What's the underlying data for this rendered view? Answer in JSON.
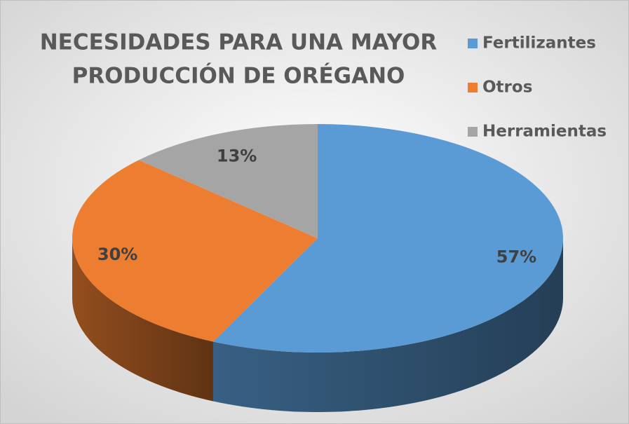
{
  "chart_data": {
    "type": "pie",
    "title": [
      "NECESIDADES PARA UNA MAYOR",
      "PRODUCCIÓN DE ORÉGANO"
    ],
    "categories": [
      "Fertilizantes",
      "Otros",
      "Herramientas"
    ],
    "values": [
      57,
      30,
      13
    ],
    "value_labels": [
      "57%",
      "30%",
      "13%"
    ],
    "colors": [
      "#5b9bd5",
      "#ed7d31",
      "#a5a5a5"
    ],
    "legend": "right"
  }
}
